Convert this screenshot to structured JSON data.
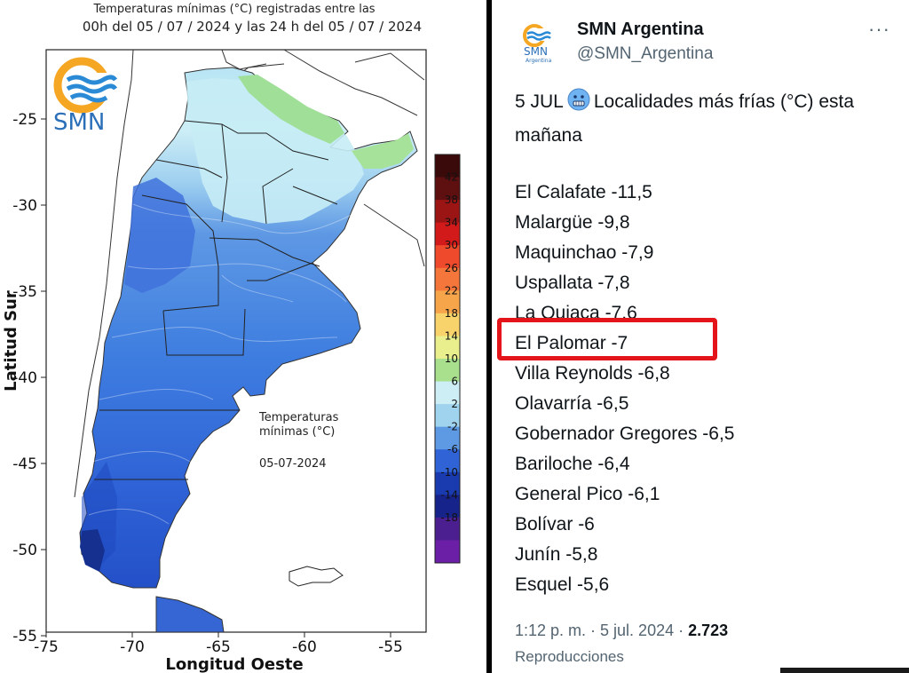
{
  "map": {
    "title_line1": "Temperaturas mínimas (°C) registradas entre las",
    "title_line2": "00h del 05 / 07 / 2024 y las 24 h del 05 / 07 / 2024",
    "logo_text": "SMN",
    "y_ticks": [
      "-25",
      "-30",
      "-35",
      "-40",
      "-45",
      "-50",
      "-55"
    ],
    "x_ticks": [
      "-75",
      "-70",
      "-65",
      "-60",
      "-55"
    ],
    "y_axis_title": "Latitud Sur",
    "x_axis_title": "Longitud Oeste",
    "note_line1": "Temperaturas",
    "note_line2": "mínimas (°C)",
    "date": "05-07-2024",
    "legend_labels": [
      "42",
      "38",
      "34",
      "30",
      "26",
      "22",
      "18",
      "14",
      "10",
      "6",
      "2",
      "-2",
      "-6",
      "-10",
      "-14",
      "-18"
    ],
    "legend_colors": [
      "#3a0a0a",
      "#5e0f10",
      "#9c1515",
      "#d21a1a",
      "#ef4a2c",
      "#f4763a",
      "#f7a54a",
      "#f8d36c",
      "#e9ef8c",
      "#a8e08e",
      "#cdeef4",
      "#9fd3ee",
      "#5e9ae3",
      "#2f63d6",
      "#1a3bb0",
      "#16238a",
      "#4b1f8f",
      "#6a1fa6"
    ]
  },
  "tweet": {
    "account_name": "SMN Argentina",
    "handle": "@SMN_Argentina",
    "avatar_text": "SMN",
    "avatar_sub": "Argentina",
    "more_icon": "···",
    "head_prefix": "5 JUL",
    "head_text": "Localidades más frías (°C) esta mañana",
    "items": [
      "El Calafate -11,5",
      "Malargüe -9,8",
      "Maquinchao -7,9",
      "Uspallata -7,8",
      "La Quiaca -7,6",
      "El Palomar -7",
      "Villa Reynolds -6,8",
      "Olavarría -6,5",
      "Gobernador Gregores -6,5",
      "Bariloche -6,4",
      "General Pico -6,1",
      "Bolívar -6",
      "Junín -5,8",
      "Esquel -5,6"
    ],
    "highlight_color": "#e4141b",
    "timestamp": "1:12 p. m. · 5 jul. 2024 ·",
    "views": "2.723",
    "views_label": "Reproducciones"
  }
}
